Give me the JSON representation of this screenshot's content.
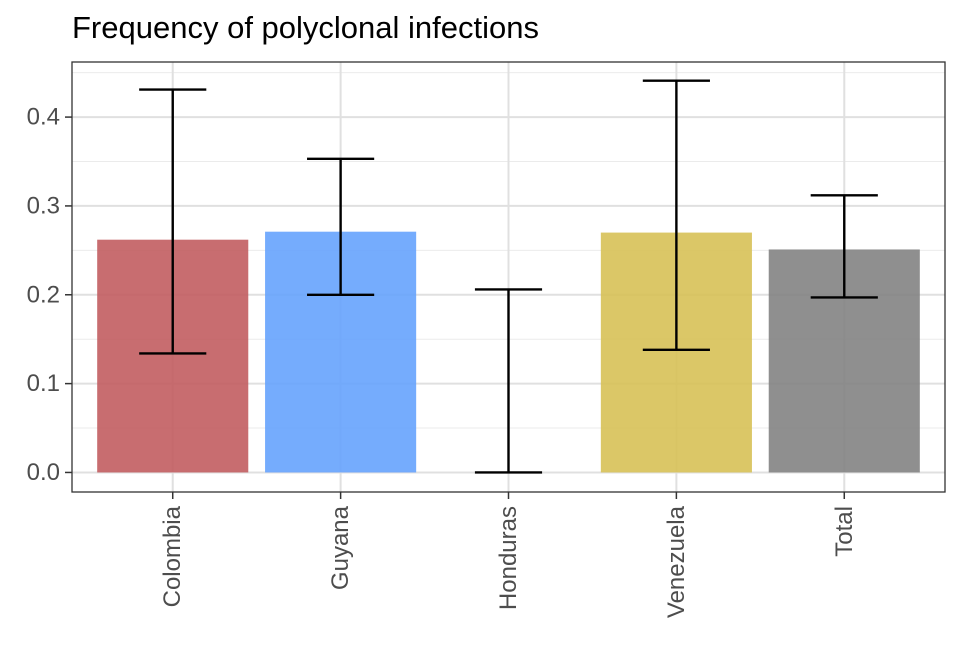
{
  "chart_data": {
    "type": "bar",
    "title": "Frequency of polyclonal infections",
    "xlabel": "",
    "ylabel": "",
    "categories": [
      "Colombia",
      "Guyana",
      "Honduras",
      "Venezuela",
      "Total"
    ],
    "values": [
      0.262,
      0.271,
      0.0,
      0.27,
      0.251
    ],
    "error_low": [
      0.134,
      0.2,
      0.0,
      0.138,
      0.197
    ],
    "error_high": [
      0.431,
      0.353,
      0.206,
      0.441,
      0.312
    ],
    "bar_colors": [
      "#c0595c",
      "#62a0fd",
      "#ffffff",
      "#d6bf52",
      "#7f7f7f"
    ],
    "ylim": [
      -0.022,
      0.462
    ],
    "yticks": [
      0.0,
      0.1,
      0.2,
      0.3,
      0.4
    ],
    "ytick_labels": [
      "0.0",
      "0.1",
      "0.2",
      "0.3",
      "0.4"
    ],
    "grid": true,
    "legend": "none"
  }
}
